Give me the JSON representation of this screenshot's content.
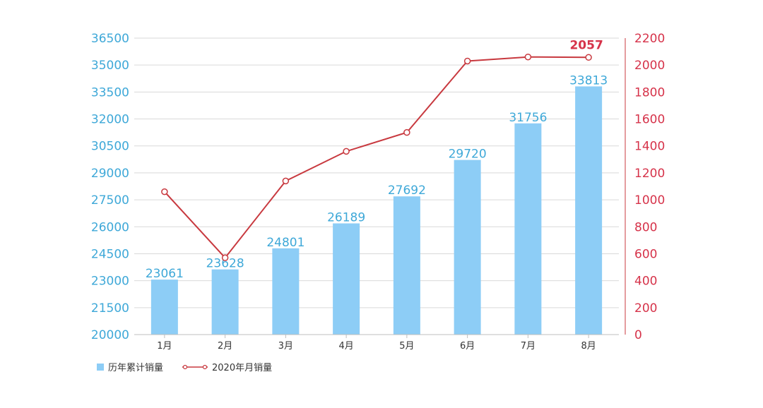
{
  "chart_data": {
    "type": "bar",
    "categories": [
      "1月",
      "2月",
      "3月",
      "4月",
      "5月",
      "6月",
      "7月",
      "8月"
    ],
    "series": [
      {
        "name": "历年累计销量",
        "type": "bar",
        "axis": "left",
        "values": [
          23061,
          23628,
          24801,
          26189,
          27692,
          29720,
          31756,
          33813
        ],
        "color": "#8dcdf6",
        "labels_shown": true
      },
      {
        "name": "2020年月销量",
        "type": "line",
        "axis": "right",
        "values": [
          1060,
          570,
          1140,
          1360,
          1500,
          2030,
          2060,
          2057
        ],
        "color": "#c8393f",
        "labeled_value": "2057"
      }
    ],
    "left_axis": {
      "ylim": [
        20000,
        36500
      ],
      "ticks": [
        "36500",
        "35000",
        "33500",
        "32000",
        "30500",
        "29000",
        "27500",
        "26000",
        "24500",
        "23000",
        "21500",
        "20000"
      ],
      "color": "#3ea8d8"
    },
    "right_axis": {
      "ylim": [
        0,
        2200
      ],
      "ticks": [
        "2200",
        "2000",
        "1800",
        "1600",
        "1400",
        "1200",
        "1000",
        "800",
        "600",
        "400",
        "200",
        "0"
      ],
      "color": "#d6334a"
    },
    "grid": true,
    "legend_position": "bottom-left"
  }
}
